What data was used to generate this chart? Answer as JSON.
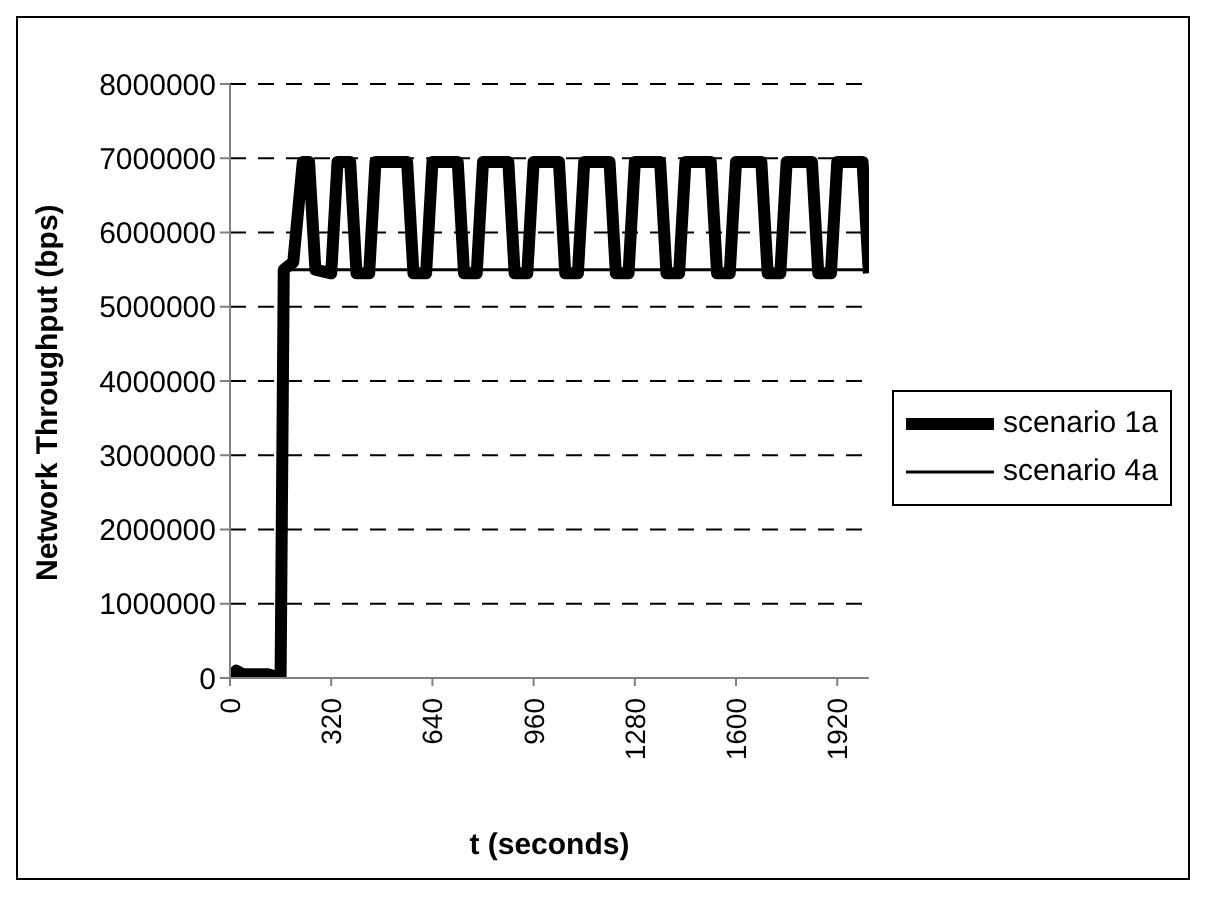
{
  "chart_data": {
    "type": "line",
    "xlabel": "t (seconds)",
    "ylabel": "Network Throughput (bps)",
    "xlim": [
      0,
      2020
    ],
    "xticks": [
      0,
      320,
      640,
      960,
      1280,
      1600,
      1920
    ],
    "ylim": [
      0,
      8000000
    ],
    "yticks": [
      0,
      1000000,
      2000000,
      3000000,
      4000000,
      5000000,
      6000000,
      7000000,
      8000000
    ],
    "grid": "y",
    "legend": "right",
    "marker": "none",
    "line_style": "solid",
    "series": [
      {
        "name": "scenario 1a",
        "color": "#000000",
        "x": [
          0,
          20,
          40,
          120,
          160,
          170,
          200,
          230,
          250,
          270,
          320,
          340,
          380,
          400,
          440,
          460,
          560,
          580,
          620,
          640,
          720,
          740,
          780,
          800,
          880,
          900,
          940,
          960,
          1040,
          1060,
          1100,
          1120,
          1200,
          1220,
          1260,
          1280,
          1360,
          1380,
          1420,
          1440,
          1520,
          1540,
          1580,
          1600,
          1680,
          1700,
          1740,
          1760,
          1840,
          1860,
          1900,
          1920,
          2000,
          2020
        ],
        "values": [
          0,
          100000,
          50000,
          50000,
          0,
          5500000,
          5600000,
          6950000,
          6950000,
          5500000,
          5450000,
          6950000,
          6950000,
          5450000,
          5450000,
          6950000,
          6950000,
          5450000,
          5450000,
          6950000,
          6950000,
          5450000,
          5450000,
          6950000,
          6950000,
          5450000,
          5450000,
          6950000,
          6950000,
          5450000,
          5450000,
          6950000,
          6950000,
          5450000,
          5450000,
          6950000,
          6950000,
          5450000,
          5450000,
          6950000,
          6950000,
          5450000,
          5450000,
          6950000,
          6950000,
          5450000,
          5450000,
          6950000,
          6950000,
          5450000,
          5450000,
          6950000,
          6950000,
          5450000
        ]
      },
      {
        "name": "scenario 4a",
        "color": "#000000",
        "x": [
          0,
          160,
          170,
          2020
        ],
        "values": [
          0,
          0,
          5500000,
          5500000
        ]
      }
    ]
  }
}
